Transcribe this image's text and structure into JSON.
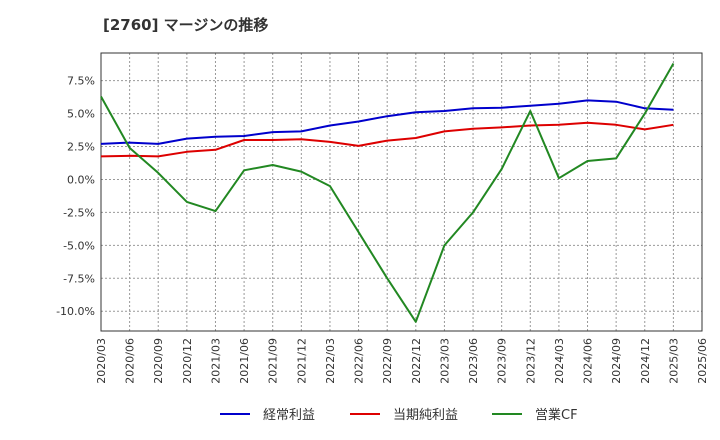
{
  "chart_data": {
    "type": "line",
    "title": "[2760]  マージンの推移",
    "xlabel": "",
    "ylabel": "",
    "x": [
      "2020/03",
      "2020/06",
      "2020/09",
      "2020/12",
      "2021/03",
      "2021/06",
      "2021/09",
      "2021/12",
      "2022/03",
      "2022/06",
      "2022/09",
      "2022/12",
      "2023/03",
      "2023/06",
      "2023/09",
      "2023/12",
      "2024/03",
      "2024/06",
      "2024/09",
      "2024/12",
      "2025/03"
    ],
    "x_ticks": [
      "2020/03",
      "2020/06",
      "2020/09",
      "2020/12",
      "2021/03",
      "2021/06",
      "2021/09",
      "2021/12",
      "2022/03",
      "2022/06",
      "2022/09",
      "2022/12",
      "2023/03",
      "2023/06",
      "2023/09",
      "2023/12",
      "2024/03",
      "2024/06",
      "2024/09",
      "2024/12",
      "2025/03",
      "2025/06"
    ],
    "y_ticks": [
      7.5,
      5.0,
      2.5,
      0.0,
      -2.5,
      -5.0,
      -7.5,
      -10.0
    ],
    "y_tick_labels": [
      "7.5%",
      "5.0%",
      "2.5%",
      "0.0%",
      "-2.5%",
      "-5.0%",
      "-7.5%",
      "-10.0%"
    ],
    "ylim": [
      -11.5,
      9.6
    ],
    "grid": true,
    "legend_position": "bottom",
    "series": [
      {
        "name": "経常利益",
        "color": "#0000cc",
        "values": [
          2.7,
          2.8,
          2.7,
          3.1,
          3.25,
          3.3,
          3.6,
          3.65,
          4.1,
          4.4,
          4.8,
          5.1,
          5.2,
          5.4,
          5.45,
          5.6,
          5.75,
          6.0,
          5.9,
          5.4,
          5.3
        ]
      },
      {
        "name": "当期純利益",
        "color": "#dd0000",
        "values": [
          1.75,
          1.8,
          1.75,
          2.1,
          2.25,
          3.0,
          3.0,
          3.05,
          2.85,
          2.55,
          2.95,
          3.15,
          3.65,
          3.85,
          3.95,
          4.1,
          4.15,
          4.3,
          4.15,
          3.8,
          4.15
        ]
      },
      {
        "name": "営業CF",
        "color": "#228822",
        "values": [
          6.3,
          2.4,
          0.5,
          -1.7,
          -2.4,
          0.7,
          1.1,
          0.6,
          -0.5,
          -4.0,
          -7.5,
          -10.8,
          -5.0,
          -2.5,
          0.8,
          5.2,
          0.1,
          1.4,
          1.6,
          5.0,
          8.8
        ]
      }
    ]
  }
}
